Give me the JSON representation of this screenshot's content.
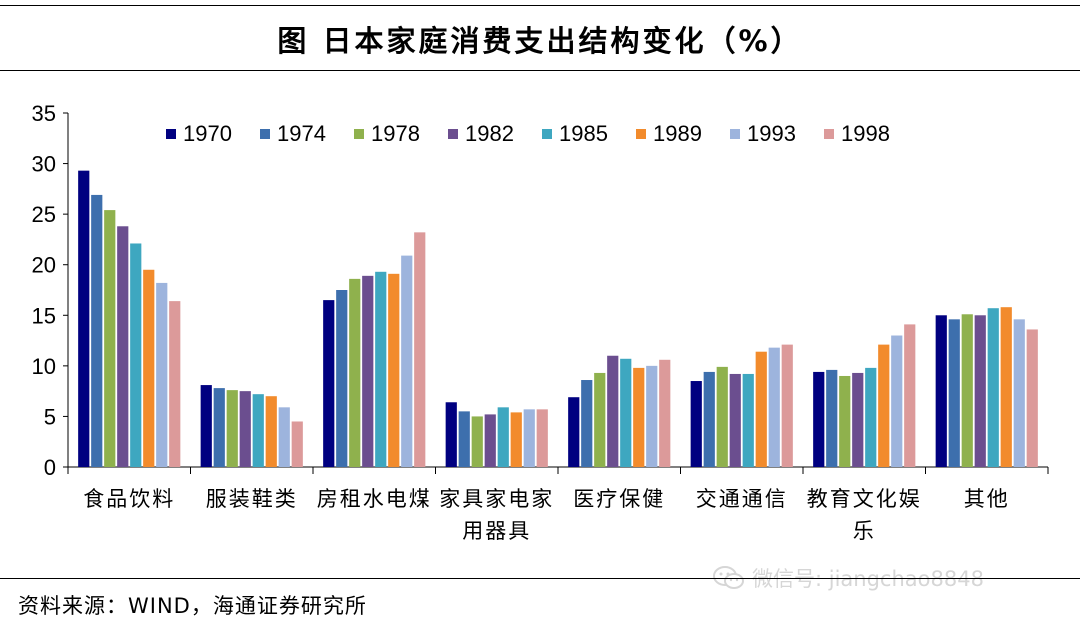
{
  "header": {
    "title": "图  日本家庭消费支出结构变化（%）"
  },
  "footer": {
    "source": "资料来源：WIND，海通证券研究所"
  },
  "watermark": {
    "text": "微信号: jiangchao8848",
    "icon": "wechat-icon"
  },
  "chart_data": {
    "type": "bar",
    "title": "图  日本家庭消费支出结构变化（%）",
    "categories": [
      [
        "食品饮料"
      ],
      [
        "服装鞋类"
      ],
      [
        "房租水电煤"
      ],
      [
        "家具家电家",
        "用器具"
      ],
      [
        "医疗保健"
      ],
      [
        "交通通信"
      ],
      [
        "教育文化娱",
        "乐"
      ],
      [
        "其他"
      ]
    ],
    "ylim": [
      0,
      35
    ],
    "yticks": [
      0,
      5,
      10,
      15,
      20,
      25,
      30,
      35
    ],
    "grid": false,
    "legend": "top",
    "xlabel": "",
    "ylabel": "",
    "series": [
      {
        "name": "1970",
        "color": "#000080",
        "values": [
          29.3,
          8.1,
          16.5,
          6.4,
          6.9,
          8.5,
          9.4,
          15.0
        ]
      },
      {
        "name": "1974",
        "color": "#3d6fad",
        "values": [
          26.9,
          7.8,
          17.5,
          5.5,
          8.6,
          9.4,
          9.6,
          14.6
        ]
      },
      {
        "name": "1978",
        "color": "#8fb14d",
        "values": [
          25.4,
          7.6,
          18.6,
          5.0,
          9.3,
          9.9,
          9.0,
          15.1
        ]
      },
      {
        "name": "1982",
        "color": "#6b4e8f",
        "values": [
          23.8,
          7.5,
          18.9,
          5.2,
          11.0,
          9.2,
          9.3,
          15.0
        ]
      },
      {
        "name": "1985",
        "color": "#3ea7c0",
        "values": [
          22.1,
          7.2,
          19.3,
          5.9,
          10.7,
          9.2,
          9.8,
          15.7
        ]
      },
      {
        "name": "1989",
        "color": "#f28b2c",
        "values": [
          19.5,
          7.0,
          19.1,
          5.4,
          9.8,
          11.4,
          12.1,
          15.8
        ]
      },
      {
        "name": "1993",
        "color": "#9db4dd",
        "values": [
          18.2,
          5.9,
          20.9,
          5.7,
          10.0,
          11.8,
          13.0,
          14.6
        ]
      },
      {
        "name": "1998",
        "color": "#dc9a9a",
        "values": [
          16.4,
          4.5,
          23.2,
          5.7,
          10.6,
          12.1,
          14.1,
          13.6
        ]
      }
    ]
  }
}
